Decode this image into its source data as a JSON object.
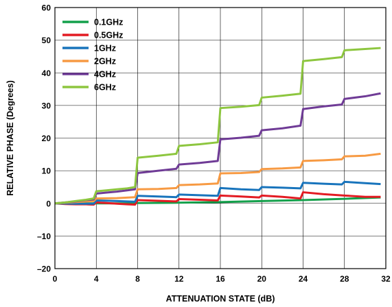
{
  "chart_data": {
    "type": "line",
    "xlabel": "ATTENUATION STATE (dB)",
    "ylabel": "RELATIVE PHASE (Degrees)",
    "xlim": [
      0,
      32
    ],
    "ylim": [
      -20,
      60
    ],
    "x_ticks": [
      "0",
      "4",
      "8",
      "12",
      "16",
      "20",
      "24",
      "28",
      "32"
    ],
    "y_ticks": [
      "–20",
      "–10",
      "0",
      "10",
      "20",
      "30",
      "40",
      "50",
      "60"
    ],
    "grid": true,
    "legend_position": "top-left",
    "series": [
      {
        "name": "0.1GHz",
        "color": "#13a04b",
        "x": [
          0,
          1,
          2,
          3,
          4,
          5,
          6,
          7,
          8,
          12,
          16,
          20,
          24,
          28,
          31.5
        ],
        "values": [
          0,
          0,
          0,
          0,
          0,
          0,
          0,
          0,
          0.1,
          0.2,
          0.4,
          0.7,
          1.0,
          1.4,
          1.8
        ]
      },
      {
        "name": "0.5GHz",
        "color": "#e31b23",
        "x": [
          0,
          1,
          2,
          3,
          3.75,
          4,
          5,
          6,
          7,
          7.75,
          8,
          10,
          11.75,
          12,
          14,
          15.75,
          16,
          18,
          19.75,
          20,
          22,
          23.75,
          24,
          26,
          28,
          30,
          31.5
        ],
        "values": [
          0,
          -0.2,
          -0.3,
          -0.3,
          -0.4,
          0.3,
          0.1,
          -0.1,
          -0.3,
          -0.4,
          1.0,
          0.8,
          0.6,
          1.3,
          1.1,
          0.9,
          2.4,
          2.1,
          1.8,
          2.4,
          2.0,
          1.5,
          3.4,
          2.8,
          2.4,
          2.0,
          2.0
        ]
      },
      {
        "name": "1GHz",
        "color": "#1874bc",
        "x": [
          0,
          2,
          3.75,
          4,
          6,
          7.75,
          8,
          10,
          11.75,
          12,
          14,
          15.75,
          16,
          18,
          19.75,
          20,
          22,
          23.75,
          24,
          26,
          27.75,
          28,
          30,
          31.5
        ],
        "values": [
          0,
          -0.1,
          -0.1,
          0.9,
          0.7,
          0.5,
          2.3,
          2.1,
          1.9,
          2.7,
          2.5,
          2.3,
          4.7,
          4.3,
          4.1,
          5.0,
          4.8,
          4.6,
          6.3,
          6.0,
          5.8,
          6.6,
          6.2,
          5.9
        ]
      },
      {
        "name": "2GHz",
        "color": "#f79a43",
        "x": [
          0,
          2,
          3.75,
          4,
          6,
          7.75,
          8,
          10,
          11.75,
          12,
          14,
          15.75,
          16,
          18,
          19.75,
          20,
          22,
          23.75,
          24,
          26,
          27.75,
          28,
          30,
          31.5
        ],
        "values": [
          0,
          0.4,
          0.7,
          1.5,
          1.6,
          1.9,
          4.3,
          4.4,
          4.7,
          5.6,
          5.8,
          6.1,
          9.2,
          9.3,
          9.6,
          10.5,
          10.7,
          11.0,
          13.0,
          13.2,
          13.5,
          14.4,
          14.6,
          15.2
        ]
      },
      {
        "name": "4GHz",
        "color": "#6f3b96",
        "x": [
          0,
          1,
          2,
          3,
          3.75,
          4,
          5,
          6,
          7,
          7.75,
          8,
          10,
          11.75,
          12,
          14,
          15.75,
          16,
          18,
          19.75,
          20,
          22,
          23.75,
          24,
          26,
          27.75,
          28,
          30,
          31.5
        ],
        "values": [
          0,
          0.3,
          0.6,
          1.0,
          1.2,
          3.0,
          3.3,
          3.6,
          4.0,
          4.3,
          9.3,
          10.0,
          10.6,
          11.9,
          12.4,
          13.0,
          19.6,
          20.1,
          20.7,
          22.4,
          23.0,
          23.8,
          28.9,
          29.7,
          30.3,
          32.0,
          32.8,
          33.7
        ]
      },
      {
        "name": "6GHz",
        "color": "#8dc63f",
        "x": [
          0,
          1,
          2,
          3,
          3.75,
          4,
          5,
          6,
          7,
          7.75,
          8,
          10,
          11.75,
          12,
          14,
          15.75,
          16,
          18,
          19.75,
          20,
          22,
          23.75,
          24,
          26,
          27.75,
          28,
          30,
          31.5
        ],
        "values": [
          0,
          0.3,
          0.7,
          1.1,
          1.5,
          3.7,
          4.0,
          4.3,
          4.6,
          5.0,
          14.0,
          14.6,
          15.2,
          17.6,
          18.1,
          18.7,
          29.2,
          29.6,
          30.1,
          32.4,
          33.0,
          33.6,
          43.6,
          44.2,
          44.8,
          46.9,
          47.3,
          47.6
        ]
      }
    ]
  }
}
